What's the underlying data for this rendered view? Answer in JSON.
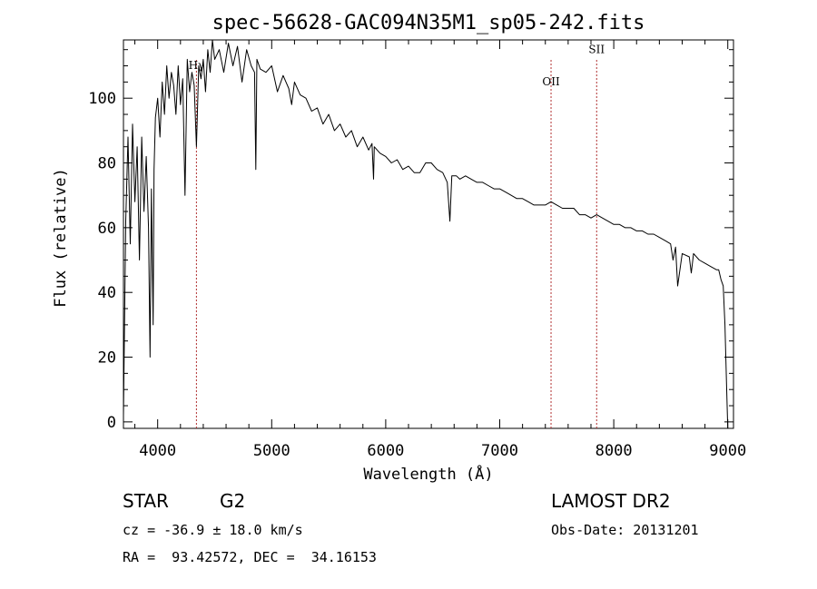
{
  "chart_data": {
    "type": "line",
    "title": "spec-56628-GAC094N35M1_sp05-242.fits",
    "xlabel": "Wavelength (Å)",
    "ylabel": "Flux (relative)",
    "xlim": [
      3700,
      9050
    ],
    "ylim": [
      -2,
      118
    ],
    "xticks": [
      4000,
      5000,
      6000,
      7000,
      8000,
      9000
    ],
    "yticks": [
      0,
      20,
      40,
      60,
      80,
      100
    ],
    "grid": false,
    "lines": [
      {
        "name": "Hγ",
        "wavelength": 4340,
        "label_y": 109
      },
      {
        "name": "OII",
        "wavelength": 7450,
        "label_y": 104
      },
      {
        "name": "SII",
        "wavelength": 7850,
        "label_y": 114
      }
    ],
    "series": [
      {
        "name": "spectrum",
        "x": [
          3700,
          3720,
          3740,
          3760,
          3780,
          3800,
          3820,
          3840,
          3860,
          3880,
          3900,
          3920,
          3933,
          3945,
          3960,
          3968,
          3980,
          4000,
          4020,
          4040,
          4060,
          4080,
          4100,
          4120,
          4140,
          4160,
          4180,
          4200,
          4220,
          4240,
          4260,
          4280,
          4300,
          4320,
          4340,
          4360,
          4380,
          4400,
          4420,
          4440,
          4460,
          4480,
          4500,
          4540,
          4580,
          4620,
          4660,
          4700,
          4740,
          4780,
          4820,
          4850,
          4861,
          4870,
          4900,
          4950,
          5000,
          5050,
          5100,
          5150,
          5175,
          5200,
          5250,
          5300,
          5350,
          5400,
          5450,
          5500,
          5550,
          5600,
          5650,
          5700,
          5750,
          5800,
          5850,
          5880,
          5893,
          5900,
          5950,
          6000,
          6050,
          6100,
          6150,
          6200,
          6250,
          6300,
          6350,
          6400,
          6450,
          6500,
          6540,
          6563,
          6580,
          6620,
          6650,
          6700,
          6750,
          6800,
          6850,
          6900,
          6950,
          7000,
          7050,
          7100,
          7150,
          7200,
          7250,
          7300,
          7350,
          7400,
          7450,
          7500,
          7550,
          7600,
          7650,
          7700,
          7750,
          7800,
          7850,
          7900,
          7950,
          8000,
          8050,
          8100,
          8150,
          8200,
          8250,
          8300,
          8350,
          8400,
          8450,
          8498,
          8520,
          8542,
          8560,
          8600,
          8662,
          8680,
          8700,
          8750,
          8800,
          8850,
          8900,
          8920,
          8940,
          8960,
          8975,
          8990,
          9000
        ],
        "y": [
          2,
          62,
          88,
          55,
          92,
          68,
          85,
          50,
          88,
          65,
          82,
          60,
          20,
          72,
          30,
          78,
          94,
          100,
          88,
          105,
          95,
          110,
          100,
          108,
          104,
          95,
          110,
          98,
          106,
          70,
          112,
          102,
          108,
          104,
          85,
          110,
          106,
          112,
          102,
          115,
          108,
          118,
          112,
          115,
          108,
          117,
          110,
          116,
          105,
          115,
          110,
          108,
          78,
          112,
          109,
          108,
          110,
          102,
          107,
          103,
          98,
          105,
          101,
          100,
          96,
          97,
          92,
          95,
          90,
          92,
          88,
          90,
          85,
          88,
          84,
          86,
          75,
          85,
          83,
          82,
          80,
          81,
          78,
          79,
          77,
          77,
          80,
          80,
          78,
          77,
          74,
          62,
          76,
          76,
          75,
          76,
          75,
          74,
          74,
          73,
          72,
          72,
          71,
          70,
          69,
          69,
          68,
          67,
          67,
          67,
          68,
          67,
          66,
          66,
          66,
          64,
          64,
          63,
          64,
          63,
          62,
          61,
          61,
          60,
          60,
          59,
          59,
          58,
          58,
          57,
          56,
          55,
          50,
          54,
          42,
          52,
          51,
          46,
          52,
          50,
          49,
          48,
          47,
          47,
          44,
          42,
          30,
          10,
          -2
        ]
      }
    ]
  },
  "footer": {
    "object_class": "STAR",
    "subclass": "G2",
    "survey": "LAMOST DR2",
    "cz_line": "cz = -36.9 ± 18.0 km/s",
    "obs_date_line": "Obs-Date: 20131201",
    "coords_line": "RA =  93.42572, DEC =  34.16153"
  }
}
